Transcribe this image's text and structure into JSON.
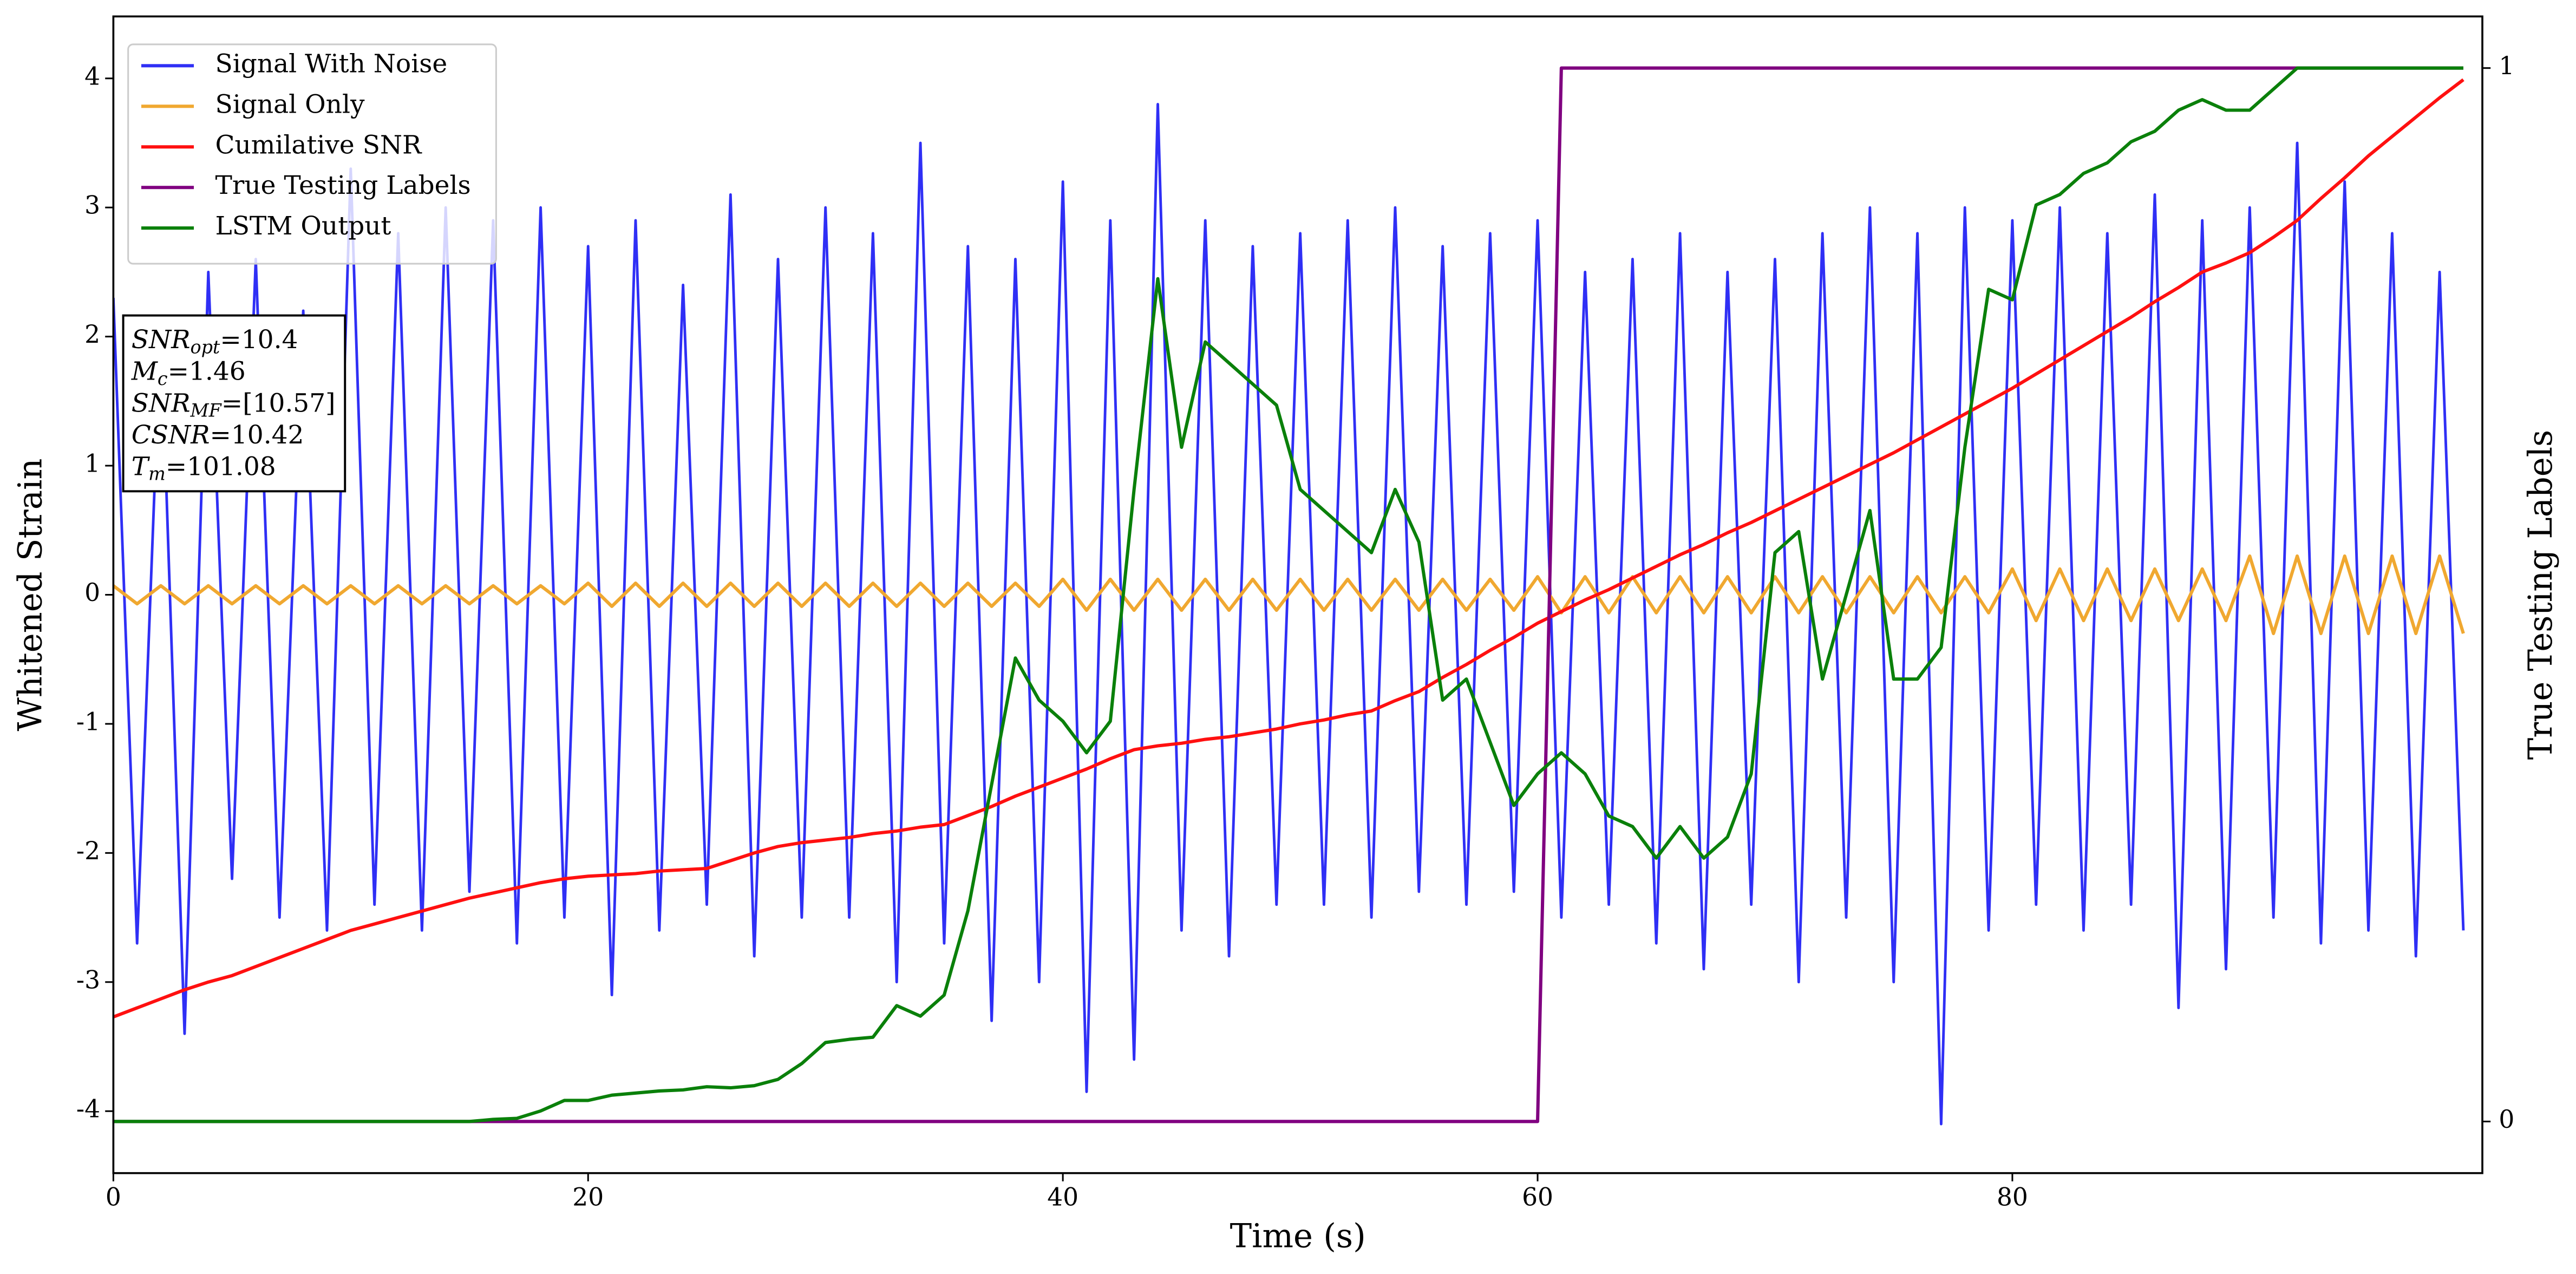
{
  "chart_data": {
    "type": "line",
    "xlabel": "Time (s)",
    "ylabel": "Whitened Strain",
    "y2label": "True Testing Labels",
    "xlim": [
      0,
      99.8
    ],
    "ylim": [
      -4.48,
      4.48
    ],
    "y2lim": [
      -0.049,
      1.049
    ],
    "xticks": [
      0,
      20,
      40,
      60,
      80
    ],
    "yticks": [
      -4,
      -3,
      -2,
      -1,
      0,
      1,
      2,
      3,
      4
    ],
    "y2ticks": [
      0,
      1
    ],
    "legend": "upper left",
    "annotation": [
      {
        "symbol": "SNR",
        "subscript": "opt",
        "text": "=10.4"
      },
      {
        "symbol": "M",
        "subscript": "c",
        "text": "=1.46"
      },
      {
        "symbol": "SNR",
        "subscript": "MF",
        "text": "=[10.57]"
      },
      {
        "symbol": "CSNR",
        "text": "=10.42"
      },
      {
        "symbol": "T",
        "subscript": "m",
        "text": "=101.08"
      }
    ],
    "x": [
      0,
      1,
      2,
      3,
      4,
      5,
      6,
      7,
      8,
      9,
      10,
      11,
      12,
      13,
      14,
      15,
      16,
      17,
      18,
      19,
      20,
      21,
      22,
      23,
      24,
      25,
      26,
      27,
      28,
      29,
      30,
      31,
      32,
      33,
      34,
      35,
      36,
      37,
      38,
      39,
      40,
      41,
      42,
      43,
      44,
      45,
      46,
      47,
      48,
      49,
      50,
      51,
      52,
      53,
      54,
      55,
      56,
      57,
      58,
      59,
      60,
      61,
      62,
      63,
      64,
      65,
      66,
      67,
      68,
      69,
      70,
      71,
      72,
      73,
      74,
      75,
      76,
      77,
      78,
      79,
      80,
      81,
      82,
      83,
      84,
      85,
      86,
      87,
      88,
      89,
      90,
      91,
      92,
      93,
      94,
      95,
      96,
      97,
      98,
      99
    ],
    "series": [
      {
        "name": "Signal With Noise",
        "color": "#2f2ff5",
        "axis": "y",
        "values": [
          2.3,
          -2.7,
          2.1,
          -3.4,
          2.5,
          -2.2,
          2.6,
          -2.5,
          2.2,
          -2.6,
          3.3,
          -2.4,
          2.8,
          -2.6,
          3.0,
          -2.3,
          2.9,
          -2.7,
          3.0,
          -2.5,
          2.7,
          -3.1,
          2.9,
          -2.6,
          2.4,
          -2.4,
          3.1,
          -2.8,
          2.6,
          -2.5,
          3.0,
          -2.5,
          2.8,
          -3.0,
          3.5,
          -2.7,
          2.7,
          -3.3,
          2.6,
          -3.0,
          3.2,
          -3.85,
          2.9,
          -3.6,
          3.8,
          -2.6,
          2.9,
          -2.8,
          2.7,
          -2.4,
          2.8,
          -2.4,
          2.9,
          -2.5,
          3.0,
          -2.3,
          2.7,
          -2.4,
          2.8,
          -2.3,
          2.9,
          -2.5,
          2.5,
          -2.4,
          2.6,
          -2.7,
          2.8,
          -2.9,
          2.5,
          -2.4,
          2.6,
          -3.0,
          2.8,
          -2.5,
          3.0,
          -3.0,
          2.8,
          -4.1,
          3.0,
          -2.6,
          2.9,
          -2.4,
          3.0,
          -2.6,
          2.8,
          -2.4,
          3.1,
          -3.2,
          2.9,
          -2.9,
          3.0,
          -2.5,
          3.5,
          -2.7,
          3.2,
          -2.6,
          2.8,
          -2.8,
          2.5,
          -2.6
        ]
      },
      {
        "name": "Signal Only",
        "color": "#f0a830",
        "axis": "y",
        "values": [
          0.07,
          -0.07,
          0.07,
          -0.07,
          0.07,
          -0.07,
          0.07,
          -0.07,
          0.07,
          -0.07,
          0.07,
          -0.07,
          0.07,
          -0.07,
          0.07,
          -0.07,
          0.07,
          -0.07,
          0.07,
          -0.07,
          0.09,
          -0.09,
          0.09,
          -0.09,
          0.09,
          -0.09,
          0.09,
          -0.09,
          0.09,
          -0.09,
          0.09,
          -0.09,
          0.09,
          -0.09,
          0.09,
          -0.09,
          0.09,
          -0.09,
          0.09,
          -0.09,
          0.12,
          -0.12,
          0.12,
          -0.12,
          0.12,
          -0.12,
          0.12,
          -0.12,
          0.12,
          -0.12,
          0.12,
          -0.12,
          0.12,
          -0.12,
          0.12,
          -0.12,
          0.12,
          -0.12,
          0.12,
          -0.12,
          0.14,
          -0.14,
          0.14,
          -0.14,
          0.14,
          -0.14,
          0.14,
          -0.14,
          0.14,
          -0.14,
          0.14,
          -0.14,
          0.14,
          -0.14,
          0.14,
          -0.14,
          0.14,
          -0.14,
          0.14,
          -0.14,
          0.2,
          -0.2,
          0.2,
          -0.2,
          0.2,
          -0.2,
          0.2,
          -0.2,
          0.2,
          -0.2,
          0.3,
          -0.3,
          0.3,
          -0.3,
          0.3,
          -0.3,
          0.3,
          -0.3,
          0.3,
          -0.3
        ]
      },
      {
        "name": "Cumilative SNR",
        "color": "#ff1010",
        "axis": "y",
        "values": [
          -3.27,
          -3.2,
          -3.13,
          -3.06,
          -3.0,
          -2.95,
          -2.88,
          -2.81,
          -2.74,
          -2.67,
          -2.6,
          -2.55,
          -2.5,
          -2.45,
          -2.4,
          -2.35,
          -2.31,
          -2.27,
          -2.23,
          -2.2,
          -2.18,
          -2.17,
          -2.16,
          -2.14,
          -2.13,
          -2.12,
          -2.06,
          -2.0,
          -1.95,
          -1.92,
          -1.9,
          -1.88,
          -1.85,
          -1.83,
          -1.8,
          -1.78,
          -1.71,
          -1.64,
          -1.56,
          -1.49,
          -1.42,
          -1.35,
          -1.27,
          -1.2,
          -1.17,
          -1.15,
          -1.12,
          -1.1,
          -1.07,
          -1.04,
          -1.0,
          -0.97,
          -0.93,
          -0.9,
          -0.82,
          -0.75,
          -0.64,
          -0.54,
          -0.43,
          -0.33,
          -0.22,
          -0.13,
          -0.04,
          0.04,
          0.13,
          0.22,
          0.31,
          0.39,
          0.48,
          0.56,
          0.65,
          0.74,
          0.83,
          0.92,
          1.01,
          1.1,
          1.2,
          1.3,
          1.4,
          1.5,
          1.6,
          1.71,
          1.82,
          1.93,
          2.04,
          2.15,
          2.27,
          2.38,
          2.5,
          2.57,
          2.65,
          2.77,
          2.9,
          3.07,
          3.23,
          3.4,
          3.55,
          3.7,
          3.85,
          3.99
        ]
      },
      {
        "name": "True Testing Labels",
        "color": "#800080",
        "axis": "y2",
        "values": [
          0,
          0,
          0,
          0,
          0,
          0,
          0,
          0,
          0,
          0,
          0,
          0,
          0,
          0,
          0,
          0,
          0,
          0,
          0,
          0,
          0,
          0,
          0,
          0,
          0,
          0,
          0,
          0,
          0,
          0,
          0,
          0,
          0,
          0,
          0,
          0,
          0,
          0,
          0,
          0,
          0,
          0,
          0,
          0,
          0,
          0,
          0,
          0,
          0,
          0,
          0,
          0,
          0,
          0,
          0,
          0,
          0,
          0,
          0,
          0,
          0,
          1,
          1,
          1,
          1,
          1,
          1,
          1,
          1,
          1,
          1,
          1,
          1,
          1,
          1,
          1,
          1,
          1,
          1,
          1,
          1,
          1,
          1,
          1,
          1,
          1,
          1,
          1,
          1,
          1,
          1,
          1,
          1,
          1,
          1,
          1,
          1,
          1,
          1,
          1
        ]
      },
      {
        "name": "LSTM Output",
        "color": "#0a800a",
        "axis": "y2",
        "values": [
          0,
          0,
          0,
          0,
          0,
          0,
          0,
          0,
          0,
          0,
          0,
          0,
          0,
          0,
          0,
          0,
          0.002,
          0.003,
          0.01,
          0.02,
          0.02,
          0.025,
          0.027,
          0.029,
          0.03,
          0.033,
          0.032,
          0.034,
          0.04,
          0.055,
          0.075,
          0.078,
          0.08,
          0.11,
          0.1,
          0.12,
          0.2,
          0.32,
          0.44,
          0.4,
          0.38,
          0.35,
          0.38,
          0.6,
          0.8,
          0.64,
          0.74,
          0.72,
          0.7,
          0.68,
          0.6,
          0.58,
          0.56,
          0.54,
          0.6,
          0.55,
          0.4,
          0.42,
          0.36,
          0.3,
          0.33,
          0.35,
          0.33,
          0.29,
          0.28,
          0.25,
          0.28,
          0.25,
          0.27,
          0.33,
          0.54,
          0.56,
          0.42,
          0.5,
          0.58,
          0.42,
          0.42,
          0.45,
          0.64,
          0.79,
          0.78,
          0.87,
          0.88,
          0.9,
          0.91,
          0.93,
          0.94,
          0.96,
          0.97,
          0.96,
          0.96,
          0.98,
          1,
          1,
          1,
          1,
          1,
          1,
          1,
          1
        ]
      }
    ]
  }
}
